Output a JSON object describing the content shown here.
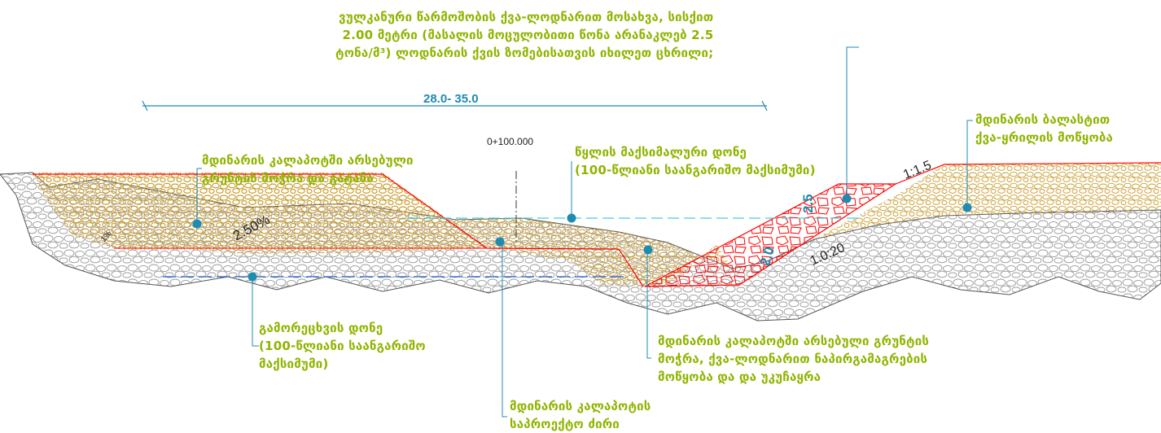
{
  "colors": {
    "label": "#8fb400",
    "leader": "#1f8bb0",
    "dimension": "#1f8bb0",
    "boundary": "#ff0000",
    "gravel": "#c89a2a",
    "cobble": "#a0a0a0",
    "dashed_level": "#2a5fc8"
  },
  "labels": {
    "top_note": [
      "ვულკანური წარმოშობის ქვა-ლოდნარით მოსახვა, სისქით",
      "2.00 მეტრი (მასალის მოცულობითი წონა არანაკლებ 2.5",
      "ტონა/მ³) ლოდნარის ქვის ზომებისათვის იხილეთ ცხრილი;"
    ],
    "river_ballast": [
      "მდინარის ბალასტით",
      "ქვა-ყრილის მოწყობა"
    ],
    "water_level": [
      "წყლის მაქსიმალური დონე",
      "(100-წლიანი საანგარიშო მაქსიმუმი)"
    ],
    "riverbed_soil": [
      "მდინარის კალაპოტში არსებული",
      "გრუნტის მოჭრა და გატანა"
    ],
    "scour_level": [
      "გამორეცხვის დონე",
      "(100-წლიანი საანგარიშო",
      "მაქსიმუმი)"
    ],
    "excavation": [
      "მდინარის კალაპოტში არსებული გრუნტის",
      "მოჭრა, ქვა-ლოდნარით ნაპირგამაგრების",
      "მოწყობა და და უკუჩაყრა"
    ],
    "thalweg": [
      "მდინარის კალაპოტის",
      "საპროექტო ძირი"
    ]
  },
  "dimensions": {
    "width_range": "28.0- 35.0",
    "station": "0+100.000",
    "height_2_5": "2.5",
    "thickness_2_0": "2.0",
    "slope_1_1_5": "1:1.5",
    "slope_1_0_20": "1.0:20",
    "grade_pct": "2.50%",
    "small_mark": "1%"
  }
}
